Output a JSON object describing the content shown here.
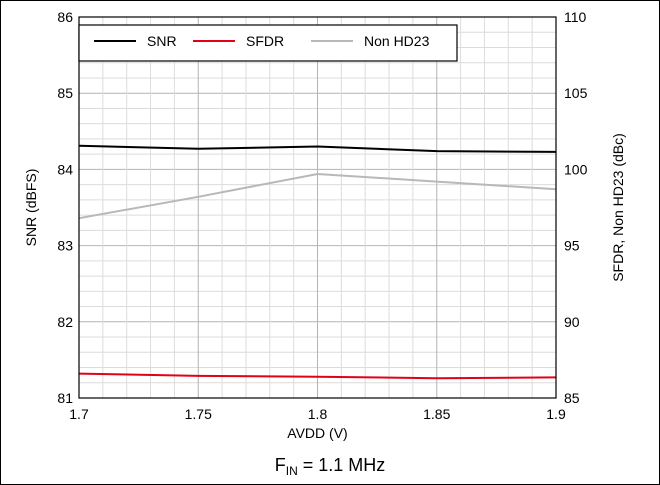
{
  "chart_data": {
    "type": "line",
    "x": [
      1.7,
      1.75,
      1.8,
      1.85,
      1.9
    ],
    "x_tick_labels": [
      "1.7",
      "1.75",
      "1.8",
      "1.85",
      "1.9"
    ],
    "xlabel": "AVDD (V)",
    "xlim": [
      1.7,
      1.9
    ],
    "ylabel_left": "SNR (dBFS)",
    "ylim_left": [
      81,
      86
    ],
    "y_left_tick_labels": [
      "81",
      "82",
      "83",
      "84",
      "85",
      "86"
    ],
    "ylabel_right": "SFDR, Non HD23 (dBc)",
    "ylim_right": [
      85,
      110
    ],
    "y_right_tick_labels": [
      "85",
      "90",
      "95",
      "100",
      "105",
      "110"
    ],
    "grid": true,
    "legend_position": "top-left",
    "series": [
      {
        "name": "SNR",
        "axis": "left",
        "color": "#000000",
        "values": [
          84.31,
          84.27,
          84.3,
          84.24,
          84.23
        ]
      },
      {
        "name": "SFDR",
        "axis": "right",
        "color": "#e3001b",
        "values": [
          86.6,
          86.45,
          86.4,
          86.3,
          86.35
        ]
      },
      {
        "name": "Non HD23",
        "axis": "right",
        "color": "#b8b8b8",
        "values": [
          96.8,
          98.2,
          99.7,
          99.2,
          98.7
        ]
      }
    ]
  },
  "condition": {
    "main": "F",
    "sub": "IN",
    "rest": " = 1.1 MHz"
  }
}
